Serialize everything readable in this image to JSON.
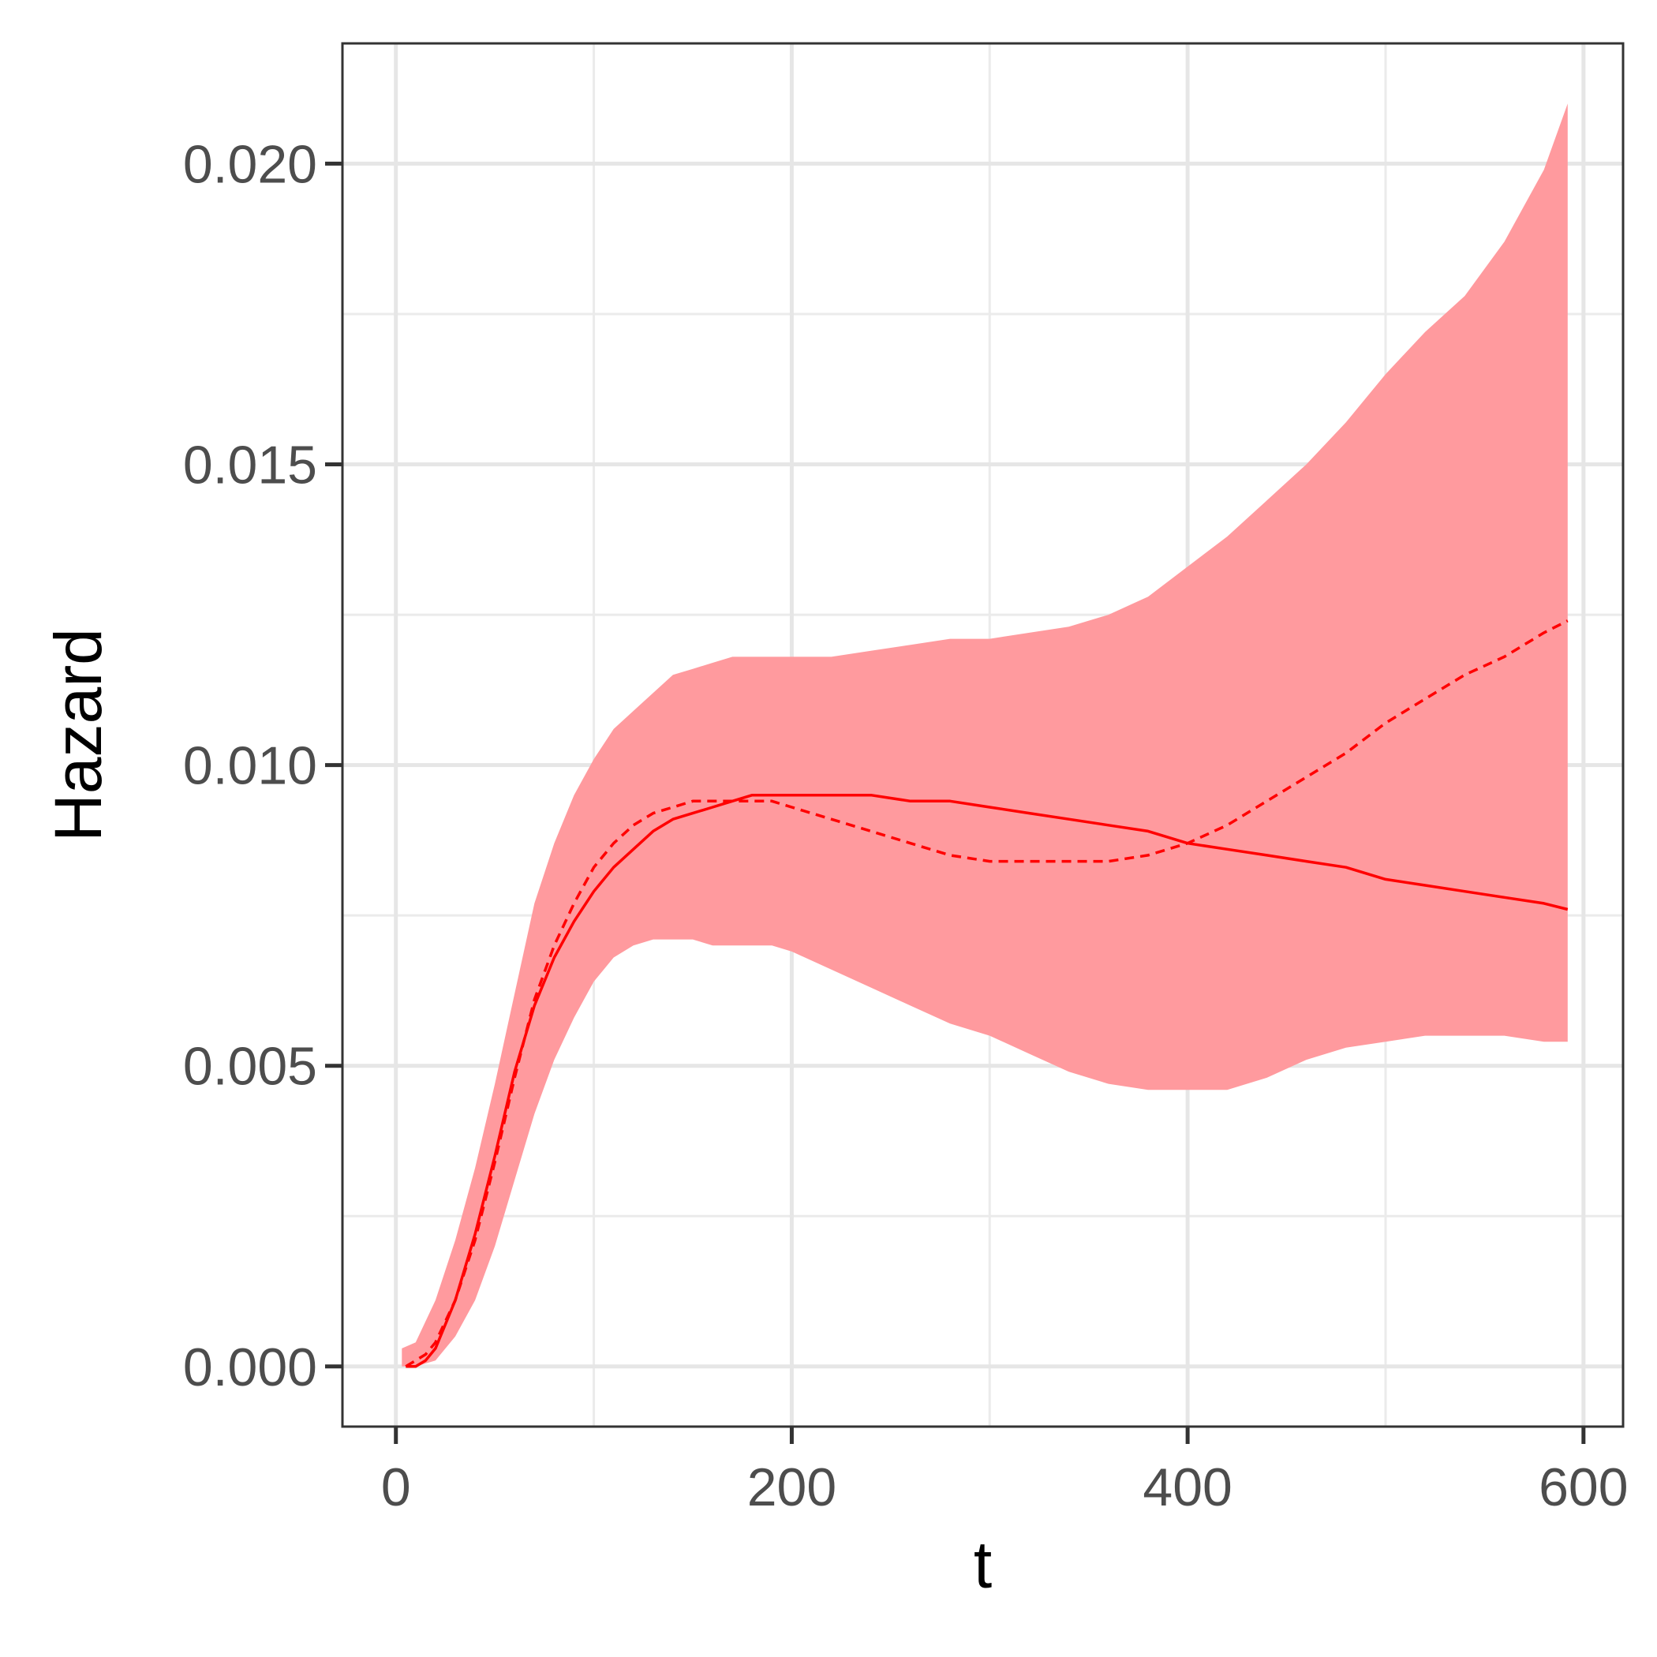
{
  "chart_data": {
    "type": "line",
    "title": "",
    "xlabel": "t",
    "ylabel": "Hazard",
    "xlim": [
      -27,
      620
    ],
    "ylim": [
      -0.001,
      0.022
    ],
    "x_ticks": [
      0,
      200,
      400,
      600
    ],
    "x_tick_labels": [
      "0",
      "200",
      "400",
      "600"
    ],
    "y_ticks": [
      0.0,
      0.005,
      0.01,
      0.015,
      0.02
    ],
    "y_tick_labels": [
      "0.000",
      "0.005",
      "0.010",
      "0.015",
      "0.020"
    ],
    "x_minor_ticks": [
      100,
      300,
      500
    ],
    "y_minor_ticks": [
      0.0025,
      0.0075,
      0.0125,
      0.0175
    ],
    "grid": true,
    "legend": "none",
    "colors": {
      "line": "#ff0000",
      "band": "#ff9a9e"
    },
    "band": {
      "x": [
        3,
        10,
        20,
        30,
        40,
        50,
        60,
        70,
        80,
        90,
        100,
        110,
        120,
        130,
        140,
        150,
        160,
        170,
        180,
        190,
        200,
        220,
        240,
        260,
        280,
        300,
        320,
        340,
        360,
        380,
        400,
        420,
        440,
        460,
        480,
        500,
        520,
        540,
        560,
        580,
        592
      ],
      "upper": [
        0.0003,
        0.0004,
        0.0011,
        0.0021,
        0.0033,
        0.0047,
        0.0062,
        0.0077,
        0.0087,
        0.0095,
        0.0101,
        0.0106,
        0.0109,
        0.0112,
        0.0115,
        0.0116,
        0.0117,
        0.0118,
        0.0118,
        0.0118,
        0.0118,
        0.0118,
        0.0119,
        0.012,
        0.0121,
        0.0121,
        0.0122,
        0.0123,
        0.0125,
        0.0128,
        0.0133,
        0.0138,
        0.0144,
        0.015,
        0.0157,
        0.0165,
        0.0172,
        0.0178,
        0.0187,
        0.0199,
        0.021
      ],
      "lower": [
        0.0,
        0.0,
        0.0001,
        0.0005,
        0.0011,
        0.002,
        0.0031,
        0.0042,
        0.0051,
        0.0058,
        0.0064,
        0.0068,
        0.007,
        0.0071,
        0.0071,
        0.0071,
        0.007,
        0.007,
        0.007,
        0.007,
        0.0069,
        0.0066,
        0.0063,
        0.006,
        0.0057,
        0.0055,
        0.0052,
        0.0049,
        0.0047,
        0.0046,
        0.0046,
        0.0046,
        0.0048,
        0.0051,
        0.0053,
        0.0054,
        0.0055,
        0.0055,
        0.0055,
        0.0054,
        0.0054
      ]
    },
    "series": [
      {
        "style": "solid",
        "x": [
          5,
          10,
          15,
          20,
          30,
          40,
          50,
          60,
          70,
          80,
          90,
          100,
          110,
          120,
          130,
          140,
          150,
          160,
          170,
          180,
          190,
          200,
          210,
          220,
          240,
          260,
          280,
          300,
          320,
          340,
          360,
          380,
          400,
          420,
          440,
          460,
          480,
          500,
          520,
          540,
          560,
          580,
          592
        ],
        "y": [
          0.0,
          0.0,
          0.0001,
          0.0003,
          0.0011,
          0.0022,
          0.0035,
          0.0049,
          0.006,
          0.0068,
          0.0074,
          0.0079,
          0.0083,
          0.0086,
          0.0089,
          0.0091,
          0.0092,
          0.0093,
          0.0094,
          0.0095,
          0.0095,
          0.0095,
          0.0095,
          0.0095,
          0.0095,
          0.0094,
          0.0094,
          0.0093,
          0.0092,
          0.0091,
          0.009,
          0.0089,
          0.0087,
          0.0086,
          0.0085,
          0.0084,
          0.0083,
          0.0081,
          0.008,
          0.0079,
          0.0078,
          0.0077,
          0.0076
        ]
      },
      {
        "style": "dashed",
        "x": [
          5,
          10,
          15,
          20,
          30,
          40,
          50,
          60,
          70,
          80,
          90,
          100,
          110,
          120,
          130,
          140,
          150,
          160,
          170,
          180,
          190,
          200,
          220,
          240,
          260,
          280,
          300,
          320,
          340,
          360,
          380,
          400,
          420,
          440,
          460,
          480,
          500,
          520,
          540,
          560,
          580,
          592
        ],
        "y": [
          0.0,
          0.0001,
          0.0002,
          0.0004,
          0.0011,
          0.0021,
          0.0034,
          0.0048,
          0.0061,
          0.007,
          0.0077,
          0.0083,
          0.0087,
          0.009,
          0.0092,
          0.0093,
          0.0094,
          0.0094,
          0.0094,
          0.0094,
          0.0094,
          0.0093,
          0.0091,
          0.0089,
          0.0087,
          0.0085,
          0.0084,
          0.0084,
          0.0084,
          0.0084,
          0.0085,
          0.0087,
          0.009,
          0.0094,
          0.0098,
          0.0102,
          0.0107,
          0.0111,
          0.0115,
          0.0118,
          0.0122,
          0.0124
        ]
      }
    ]
  }
}
